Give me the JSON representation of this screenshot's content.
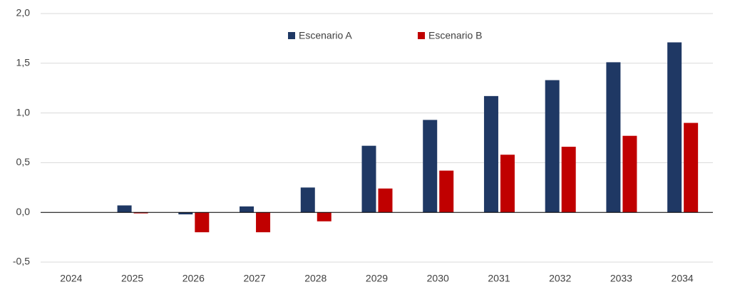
{
  "chart_data": {
    "type": "bar",
    "categories": [
      "2024",
      "2025",
      "2026",
      "2027",
      "2028",
      "2029",
      "2030",
      "2031",
      "2032",
      "2033",
      "2034"
    ],
    "series": [
      {
        "name": "Escenario A",
        "color": "#1f3864",
        "values": [
          0,
          0.07,
          -0.02,
          0.06,
          0.25,
          0.67,
          0.93,
          1.17,
          1.33,
          1.51,
          1.71
        ]
      },
      {
        "name": "Escenario B",
        "color": "#c00000",
        "values": [
          0,
          -0.01,
          -0.2,
          -0.2,
          -0.09,
          0.24,
          0.42,
          0.58,
          0.66,
          0.77,
          0.9
        ]
      }
    ],
    "ylim": [
      -0.5,
      2.0
    ],
    "yticks": [
      {
        "value": -0.5,
        "label": "-0,5"
      },
      {
        "value": 0,
        "label": "0,0"
      },
      {
        "value": 0.5,
        "label": "0,5"
      },
      {
        "value": 1.0,
        "label": "1,0"
      },
      {
        "value": 1.5,
        "label": "1,5"
      },
      {
        "value": 2.0,
        "label": "2,0"
      }
    ],
    "grid": true,
    "legend": "top"
  }
}
